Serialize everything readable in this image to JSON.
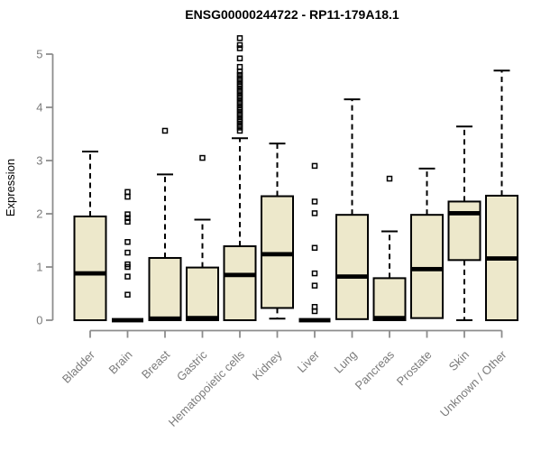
{
  "chart_data": {
    "type": "boxplot",
    "title": "ENSG00000244722 - RP11-179A18.1",
    "ylabel": "Expression",
    "xlabel": "",
    "ylim": [
      0,
      5
    ],
    "yticks": [
      0,
      1,
      2,
      3,
      4,
      5
    ],
    "grid": false,
    "legend": "none",
    "categories": [
      "Bladder",
      "Brain",
      "Breast",
      "Gastric",
      "Hematopoietic cells",
      "Kidney",
      "Liver",
      "Lung",
      "Pancreas",
      "Prostate",
      "Skin",
      "Unknown / Other"
    ],
    "series": [
      {
        "category": "Bladder",
        "whisker_low": 0,
        "q1": 0,
        "median": 0.88,
        "q3": 1.95,
        "whisker_high": 3.17,
        "outliers": []
      },
      {
        "category": "Brain",
        "whisker_low": 0,
        "q1": 0,
        "median": 0,
        "q3": 0,
        "whisker_high": 0,
        "outliers": [
          2.41,
          2.32,
          1.99,
          1.92,
          1.85,
          1.47,
          1.27,
          1.05,
          1.0,
          0.82,
          0.48
        ]
      },
      {
        "category": "Breast",
        "whisker_low": 0,
        "q1": 0,
        "median": 0.03,
        "q3": 1.17,
        "whisker_high": 2.74,
        "outliers": [
          3.56
        ]
      },
      {
        "category": "Gastric",
        "whisker_low": 0,
        "q1": 0,
        "median": 0.04,
        "q3": 0.99,
        "whisker_high": 1.89,
        "outliers": [
          3.05
        ]
      },
      {
        "category": "Hematopoietic cells",
        "whisker_low": 0,
        "q1": 0,
        "median": 0.85,
        "q3": 1.39,
        "whisker_high": 3.42,
        "outliers": [
          5.3,
          5.17,
          5.11,
          4.92,
          4.76,
          4.67,
          4.61,
          4.55,
          4.5,
          4.44,
          4.39,
          4.33,
          4.28,
          4.22,
          4.17,
          4.11,
          4.06,
          4.0,
          3.95,
          3.89,
          3.84,
          3.78,
          3.73,
          3.67,
          3.62,
          3.56
        ]
      },
      {
        "category": "Kidney",
        "whisker_low": 0.03,
        "q1": 0.23,
        "median": 1.24,
        "q3": 2.33,
        "whisker_high": 3.32,
        "outliers": []
      },
      {
        "category": "Liver",
        "whisker_low": 0,
        "q1": 0,
        "median": 0,
        "q3": 0,
        "whisker_high": 0,
        "outliers": [
          2.9,
          2.23,
          2.01,
          1.36,
          0.88,
          0.65,
          0.25,
          0.17
        ]
      },
      {
        "category": "Lung",
        "whisker_low": 0.02,
        "q1": 0.02,
        "median": 0.82,
        "q3": 1.98,
        "whisker_high": 4.15,
        "outliers": []
      },
      {
        "category": "Pancreas",
        "whisker_low": 0,
        "q1": 0,
        "median": 0.04,
        "q3": 0.79,
        "whisker_high": 1.67,
        "outliers": [
          2.66
        ]
      },
      {
        "category": "Prostate",
        "whisker_low": 0.04,
        "q1": 0.04,
        "median": 0.96,
        "q3": 1.98,
        "whisker_high": 2.85,
        "outliers": []
      },
      {
        "category": "Skin",
        "whisker_low": 0,
        "q1": 1.13,
        "median": 2.01,
        "q3": 2.23,
        "whisker_high": 3.64,
        "outliers": []
      },
      {
        "category": "Unknown / Other",
        "whisker_low": 0,
        "q1": 0,
        "median": 1.16,
        "q3": 2.34,
        "whisker_high": 4.69,
        "outliers": []
      }
    ]
  },
  "colors": {
    "box_fill": "#EDE8CB",
    "box_stroke": "#000000",
    "median": "#000000",
    "whisker": "#000000",
    "outlier": "#000000",
    "axis": "#8C8C8C",
    "tick_text": "#7B7B7B",
    "title_text": "#000000",
    "background": "#FFFFFF"
  }
}
